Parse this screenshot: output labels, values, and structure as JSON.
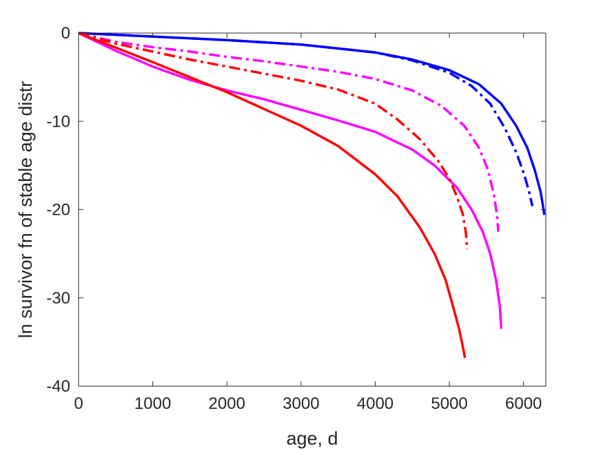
{
  "chart_data": {
    "type": "line",
    "title": "",
    "xlabel": "age, d",
    "ylabel": "ln survivor fn of stable age distr",
    "xlim": [
      0,
      6300
    ],
    "ylim": [
      -40,
      0
    ],
    "xticks": [
      0,
      1000,
      2000,
      3000,
      4000,
      5000,
      6000
    ],
    "yticks": [
      0,
      -10,
      -20,
      -30,
      -40
    ],
    "xtick_labels": [
      "0",
      "1000",
      "2000",
      "3000",
      "4000",
      "5000",
      "6000"
    ],
    "ytick_labels": [
      "0",
      "-10",
      "-20",
      "-30",
      "-40"
    ],
    "grid": false,
    "box": true,
    "series": [
      {
        "color": "#0000ff",
        "style": "solid",
        "points": [
          [
            0,
            0
          ],
          [
            1000,
            -0.4
          ],
          [
            2000,
            -0.8
          ],
          [
            3000,
            -1.3
          ],
          [
            4000,
            -2.2
          ],
          [
            4500,
            -3.0
          ],
          [
            5000,
            -4.2
          ],
          [
            5400,
            -5.8
          ],
          [
            5700,
            -8.0
          ],
          [
            5900,
            -10.5
          ],
          [
            6050,
            -13.0
          ],
          [
            6150,
            -15.5
          ],
          [
            6230,
            -18.0
          ],
          [
            6270,
            -20.0
          ],
          [
            6280,
            -20.6
          ]
        ]
      },
      {
        "color": "#0000ff",
        "style": "dashdot",
        "points": [
          [
            0,
            0
          ],
          [
            1000,
            -0.4
          ],
          [
            2000,
            -0.8
          ],
          [
            3000,
            -1.3
          ],
          [
            4000,
            -2.2
          ],
          [
            4500,
            -3.1
          ],
          [
            5000,
            -4.5
          ],
          [
            5300,
            -6.0
          ],
          [
            5550,
            -8.0
          ],
          [
            5750,
            -10.8
          ],
          [
            5900,
            -13.5
          ],
          [
            6000,
            -15.8
          ],
          [
            6070,
            -17.8
          ],
          [
            6110,
            -19.3
          ],
          [
            6120,
            -19.6
          ]
        ]
      },
      {
        "color": "#ff00ff",
        "style": "solid",
        "points": [
          [
            0,
            0
          ],
          [
            500,
            -2.0
          ],
          [
            1000,
            -3.8
          ],
          [
            1500,
            -5.3
          ],
          [
            2000,
            -6.5
          ],
          [
            2500,
            -7.5
          ],
          [
            3000,
            -8.7
          ],
          [
            3500,
            -9.9
          ],
          [
            4000,
            -11.2
          ],
          [
            4500,
            -13.2
          ],
          [
            4800,
            -15.0
          ],
          [
            5100,
            -17.5
          ],
          [
            5300,
            -20.0
          ],
          [
            5450,
            -22.5
          ],
          [
            5550,
            -25.0
          ],
          [
            5630,
            -28.0
          ],
          [
            5680,
            -31.0
          ],
          [
            5700,
            -33.5
          ]
        ]
      },
      {
        "color": "#ff00ff",
        "style": "dashdot",
        "points": [
          [
            0,
            0
          ],
          [
            500,
            -1.0
          ],
          [
            1000,
            -1.6
          ],
          [
            1500,
            -2.1
          ],
          [
            2000,
            -2.7
          ],
          [
            2500,
            -3.2
          ],
          [
            3000,
            -3.8
          ],
          [
            3500,
            -4.4
          ],
          [
            4000,
            -5.2
          ],
          [
            4500,
            -6.5
          ],
          [
            4900,
            -8.3
          ],
          [
            5200,
            -10.5
          ],
          [
            5400,
            -13.0
          ],
          [
            5520,
            -15.5
          ],
          [
            5600,
            -18.3
          ],
          [
            5640,
            -20.5
          ],
          [
            5660,
            -22.5
          ]
        ]
      },
      {
        "color": "#ff0000",
        "style": "solid",
        "points": [
          [
            0,
            0
          ],
          [
            1000,
            -3.3
          ],
          [
            2000,
            -6.7
          ],
          [
            3000,
            -10.5
          ],
          [
            3500,
            -12.8
          ],
          [
            4000,
            -16.0
          ],
          [
            4300,
            -18.5
          ],
          [
            4600,
            -22.0
          ],
          [
            4800,
            -25.0
          ],
          [
            4950,
            -28.0
          ],
          [
            5050,
            -31.0
          ],
          [
            5130,
            -33.5
          ],
          [
            5180,
            -35.5
          ],
          [
            5210,
            -36.8
          ]
        ]
      },
      {
        "color": "#ff0000",
        "style": "dashdot",
        "points": [
          [
            0,
            0
          ],
          [
            500,
            -1.2
          ],
          [
            1000,
            -2.1
          ],
          [
            1500,
            -3.0
          ],
          [
            2000,
            -3.8
          ],
          [
            2500,
            -4.6
          ],
          [
            3000,
            -5.4
          ],
          [
            3500,
            -6.4
          ],
          [
            4000,
            -8.0
          ],
          [
            4300,
            -9.8
          ],
          [
            4600,
            -12.0
          ],
          [
            4850,
            -14.5
          ],
          [
            5000,
            -16.5
          ],
          [
            5100,
            -18.5
          ],
          [
            5180,
            -20.5
          ],
          [
            5220,
            -22.5
          ],
          [
            5240,
            -24.5
          ]
        ]
      }
    ]
  }
}
